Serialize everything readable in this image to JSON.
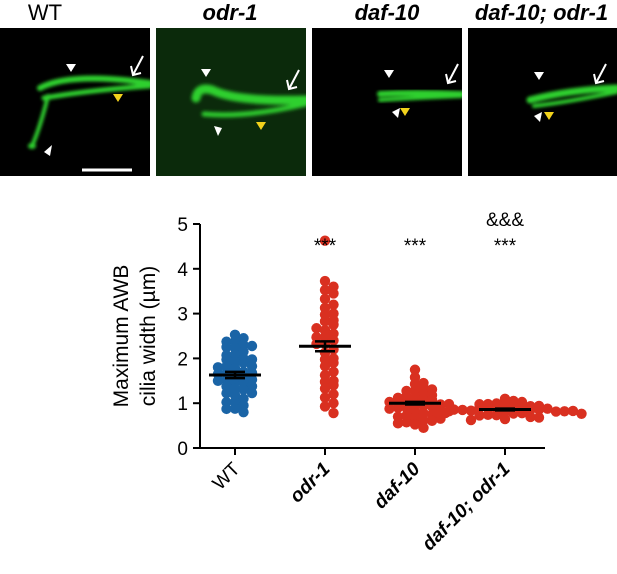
{
  "panels": [
    {
      "label": "WT",
      "style": "plain"
    },
    {
      "label": "odr-1",
      "style": "italic"
    },
    {
      "label": "daf-10",
      "style": "italic"
    },
    {
      "label": "daf-10; odr-1",
      "style": "italic"
    }
  ],
  "chart_data": {
    "type": "scatter",
    "categories": [
      "WT",
      "odr-1",
      "daf-10",
      "daf-10; odr-1"
    ],
    "category_italic": [
      false,
      true,
      true,
      true
    ],
    "ylabel_lines": [
      "Maximum AWB",
      "cilia width (µm)"
    ],
    "ylim": [
      0,
      5
    ],
    "yticks": [
      0,
      1,
      2,
      3,
      4,
      5
    ],
    "grid": false,
    "series": [
      {
        "color": "#1a64a6",
        "mean": 1.63,
        "sem": 0.07,
        "values": [
          2.5,
          2.45,
          2.4,
          2.35,
          2.3,
          2.28,
          2.25,
          2.2,
          2.15,
          2.1,
          2.05,
          2.0,
          2.0,
          1.95,
          1.9,
          1.9,
          1.85,
          1.8,
          1.8,
          1.75,
          1.7,
          1.7,
          1.65,
          1.65,
          1.6,
          1.6,
          1.55,
          1.5,
          1.5,
          1.45,
          1.45,
          1.4,
          1.35,
          1.3,
          1.3,
          1.25,
          1.2,
          1.15,
          1.1,
          1.05,
          1.0,
          0.95,
          0.9,
          0.85,
          0.8
        ]
      },
      {
        "color": "#d93020",
        "mean": 2.27,
        "sem": 0.11,
        "values": [
          4.6,
          3.7,
          3.6,
          3.5,
          3.45,
          3.3,
          3.2,
          3.1,
          3.0,
          2.95,
          2.85,
          2.8,
          2.75,
          2.7,
          2.6,
          2.55,
          2.5,
          2.45,
          2.4,
          2.35,
          2.3,
          2.2,
          2.1,
          2.0,
          1.95,
          1.9,
          1.8,
          1.7,
          1.6,
          1.5,
          1.45,
          1.4,
          1.3,
          1.2,
          1.1,
          1.0,
          0.9,
          0.78
        ]
      },
      {
        "color": "#d93020",
        "mean": 1.0,
        "sem": 0.03,
        "values": [
          1.72,
          1.55,
          1.45,
          1.4,
          1.35,
          1.3,
          1.28,
          1.25,
          1.2,
          1.18,
          1.15,
          1.12,
          1.1,
          1.08,
          1.05,
          1.05,
          1.02,
          1.0,
          1.0,
          0.98,
          0.95,
          0.95,
          0.92,
          0.9,
          0.9,
          0.88,
          0.85,
          0.82,
          0.8,
          0.78,
          0.75,
          0.72,
          0.7,
          0.68,
          0.65,
          0.62,
          0.6,
          0.58,
          0.55,
          0.5,
          0.45
        ]
      },
      {
        "color": "#d93020",
        "mean": 0.86,
        "sem": 0.02,
        "values": [
          1.07,
          1.05,
          1.02,
          1.0,
          0.98,
          0.96,
          0.95,
          0.94,
          0.92,
          0.91,
          0.9,
          0.9,
          0.89,
          0.88,
          0.87,
          0.86,
          0.86,
          0.85,
          0.85,
          0.84,
          0.83,
          0.82,
          0.81,
          0.8,
          0.8,
          0.79,
          0.78,
          0.77,
          0.76,
          0.75,
          0.74,
          0.72,
          0.7,
          0.68,
          0.65,
          0.62
        ]
      }
    ],
    "annotations": [
      {
        "category_index": 1,
        "lines": [
          "***"
        ]
      },
      {
        "category_index": 2,
        "lines": [
          "***"
        ]
      },
      {
        "category_index": 3,
        "lines": [
          "&&&",
          "***"
        ]
      }
    ]
  }
}
